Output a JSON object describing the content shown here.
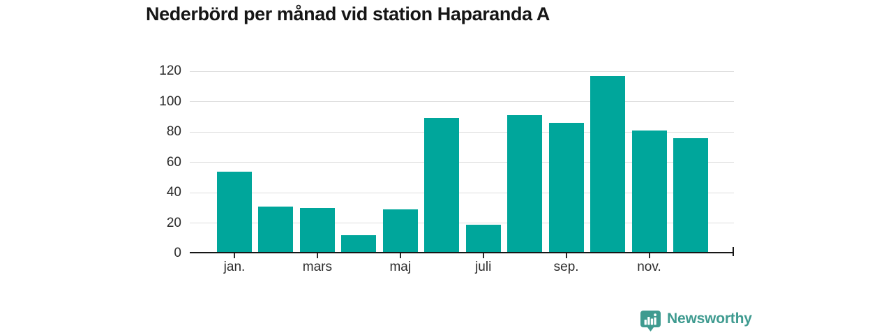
{
  "page": {
    "background": "#ffffff"
  },
  "title": {
    "text": "Nederbörd per månad vid station Haparanda A"
  },
  "chart_data": {
    "type": "bar",
    "title": "Nederbörd per månad vid station Haparanda A",
    "values": [
      54,
      31,
      30,
      12,
      29,
      89,
      19,
      91,
      86,
      117,
      81,
      76
    ],
    "bar_count": 12,
    "xticks": [
      {
        "index": 0,
        "label": "jan."
      },
      {
        "index": 2,
        "label": "mars"
      },
      {
        "index": 4,
        "label": "maj"
      },
      {
        "index": 6,
        "label": "juli"
      },
      {
        "index": 8,
        "label": "sep."
      },
      {
        "index": 10,
        "label": "nov."
      }
    ],
    "yticks": [
      0,
      20,
      40,
      60,
      80,
      100,
      120
    ],
    "ylim": [
      0,
      120
    ],
    "grid": true,
    "legend_position": "none"
  },
  "colors": {
    "bar": "#00a69b",
    "axis_line": "#161616",
    "gridline": "#dedede",
    "tick_mark": "#2b2b2b",
    "tick_text": "#2b2b2b",
    "title_text": "#161616",
    "logo": "#3f9b90"
  },
  "footer": {
    "brand": "Newsworthy",
    "logo_icon": "speech-bubble-bar-chart"
  }
}
